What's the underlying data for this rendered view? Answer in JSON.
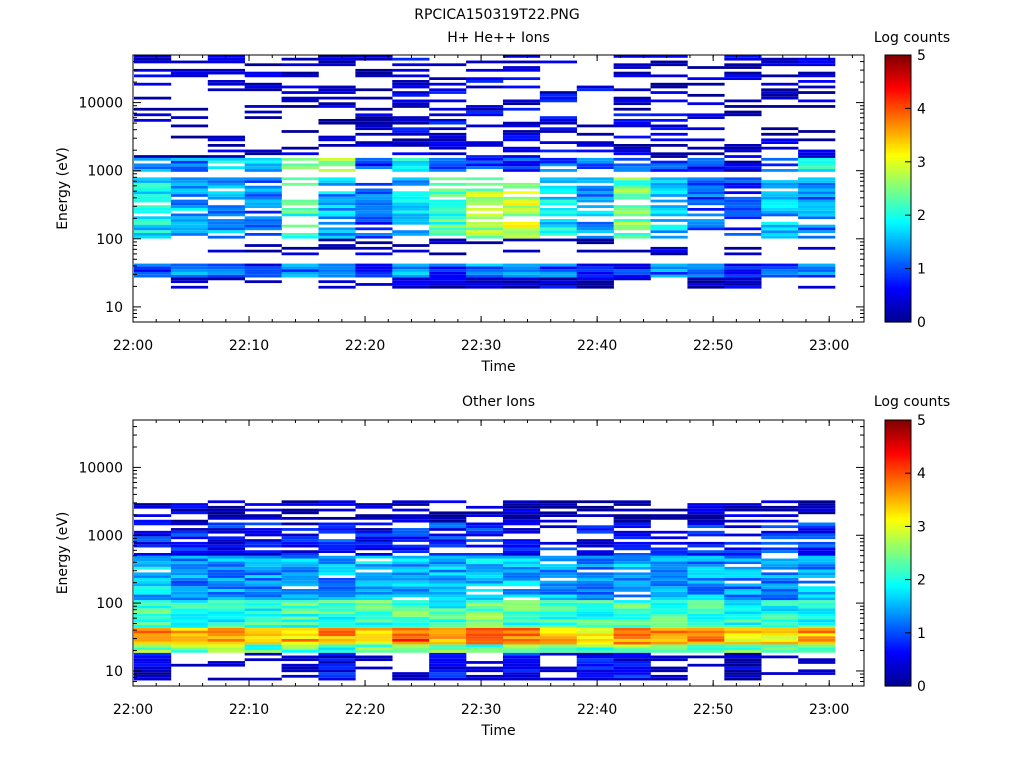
{
  "figure_title": "RPCICA150319T22.PNG",
  "colors": {
    "cmap": [
      "#00008f",
      "#0000ff",
      "#007fff",
      "#00ffff",
      "#7fff7f",
      "#ffff00",
      "#ff7f00",
      "#ff0000",
      "#7f0000"
    ]
  },
  "chart_data": [
    {
      "type": "heatmap",
      "title": "H+ He++ Ions",
      "xlabel": "Time",
      "ylabel": "Energy (eV)",
      "colorbar_label": "Log counts",
      "colorbar_ticks": [
        "0",
        "1",
        "2",
        "3",
        "4",
        "5"
      ],
      "clim": [
        0,
        5
      ],
      "xlim": [
        "22:00",
        "23:03"
      ],
      "ylim": [
        6,
        50000
      ],
      "yscale": "log",
      "x_ticks": [
        "22:00",
        "22:10",
        "22:20",
        "22:30",
        "22:40",
        "22:50",
        "23:00"
      ],
      "y_ticks": [
        "10",
        "100",
        "1000",
        "10000"
      ],
      "n_time_bins": 19,
      "n_energy_bins": 96,
      "energy_range": [
        6,
        50000
      ],
      "bands": [
        {
          "c": 0,
          "lo": 28,
          "hi": 45,
          "v": [
            0.9,
            1.2,
            1.1,
            0.6,
            1.2,
            1.2,
            0.7,
            1.3,
            1.0,
            1.3,
            1.2,
            1.0,
            0.8,
            0.7,
            1.2,
            1.0,
            0.5,
            0.9,
            1.1
          ],
          "d": 1.0
        },
        {
          "c": 0,
          "lo": 18,
          "hi": 28,
          "v": [
            0,
            0,
            0,
            0,
            0,
            0,
            0,
            0.2,
            0.2,
            0.2,
            0.3,
            0.4,
            0.2,
            0,
            0,
            0.3,
            0.3,
            0,
            0
          ],
          "d": 1.0
        },
        {
          "c": 1,
          "lo": 100,
          "hi": 800,
          "v": [
            1.8,
            1.5,
            1.4,
            1.2,
            2.2,
            1.5,
            1.0,
            1.6,
            2.2,
            2.7,
            2.8,
            1.8,
            1.4,
            2.4,
            1.6,
            1.0,
            0.9,
            1.5,
            1.3
          ],
          "d": 0.75
        },
        {
          "c": 1,
          "lo": 1000,
          "hi": 1500,
          "v": [
            1.4,
            1.2,
            1.7,
            1.5,
            2.3,
            2.6,
            1.0,
            1.8,
            1.2,
            1.0,
            0.9,
            1.0,
            1.2,
            1.3,
            1.0,
            0.8,
            0.3,
            1.1,
            1.9
          ],
          "d": 0.8
        },
        {
          "c": 0,
          "lo": 1500,
          "hi": 50000,
          "v": [
            0.3,
            0.2,
            0.2,
            0.2,
            0.2,
            0.2,
            0.3,
            0.4,
            0.5,
            0.5,
            0.5,
            0.5,
            0.4,
            0.4,
            0.3,
            0.3,
            0.3,
            0.2,
            0.2
          ],
          "d": 0.35
        },
        {
          "c": 0,
          "lo": 60,
          "hi": 100,
          "v": [
            0.2,
            0,
            0,
            0.1,
            0.1,
            0.1,
            0.2,
            0.3,
            0.2,
            0.3,
            0.2,
            0.3,
            0.2,
            0.2,
            0.2,
            0.2,
            0.1,
            0,
            0
          ],
          "d": 0.35
        }
      ]
    },
    {
      "type": "heatmap",
      "title": "Other Ions",
      "xlabel": "Time",
      "ylabel": "Energy (eV)",
      "colorbar_label": "Log counts",
      "colorbar_ticks": [
        "0",
        "1",
        "2",
        "3",
        "4",
        "5"
      ],
      "clim": [
        0,
        5
      ],
      "xlim": [
        "22:00",
        "23:03"
      ],
      "ylim": [
        6,
        50000
      ],
      "yscale": "log",
      "x_ticks": [
        "22:00",
        "22:10",
        "22:20",
        "22:30",
        "22:40",
        "22:50",
        "23:00"
      ],
      "y_ticks": [
        "10",
        "100",
        "1000",
        "10000"
      ],
      "n_time_bins": 19,
      "n_energy_bins": 96,
      "energy_range": [
        6,
        50000
      ],
      "bands": [
        {
          "c": 1,
          "lo": 25,
          "hi": 45,
          "v": [
            3.6,
            3.5,
            3.4,
            3.5,
            3.5,
            3.6,
            3.2,
            3.9,
            3.6,
            3.7,
            3.7,
            3.4,
            3.3,
            3.6,
            3.7,
            3.6,
            3.2,
            3.3,
            3.5
          ],
          "d": 1.0
        },
        {
          "c": 1,
          "lo": 45,
          "hi": 110,
          "v": [
            2.2,
            2.0,
            2.0,
            2.1,
            2.2,
            2.1,
            2.2,
            2.3,
            2.1,
            2.3,
            2.2,
            2.1,
            2.1,
            2.2,
            2.1,
            2.2,
            2.0,
            2.0,
            2.1
          ],
          "d": 1.0
        },
        {
          "c": 1,
          "lo": 110,
          "hi": 500,
          "v": [
            1.6,
            1.3,
            1.4,
            1.4,
            1.5,
            1.4,
            1.6,
            1.5,
            1.5,
            1.6,
            1.5,
            1.4,
            1.3,
            1.5,
            1.5,
            1.4,
            1.3,
            1.4,
            1.4
          ],
          "d": 0.95
        },
        {
          "c": 0,
          "lo": 500,
          "hi": 1500,
          "v": [
            0.8,
            0.7,
            0.7,
            0.6,
            0.6,
            0.8,
            0.6,
            0.7,
            0.8,
            0.9,
            0.7,
            0.7,
            0.6,
            0.6,
            0.7,
            0.8,
            0.6,
            0.9,
            0.8
          ],
          "d": 0.75
        },
        {
          "c": 0,
          "lo": 1500,
          "hi": 3200,
          "v": [
            0.3,
            0.3,
            0.2,
            0.2,
            0.2,
            0.3,
            0.2,
            0.2,
            0.2,
            0.2,
            0.2,
            0.2,
            0.2,
            0.2,
            0.2,
            0.2,
            0.2,
            0.3,
            0.3
          ],
          "d": 0.6
        },
        {
          "c": 1,
          "lo": 18,
          "hi": 25,
          "v": [
            2.4,
            2.5,
            2.6,
            2.3,
            2.3,
            1.8,
            2.4,
            2.5,
            2.6,
            2.3,
            2.6,
            2.5,
            2.3,
            2.5,
            2.2,
            2.3,
            2.4,
            2.1,
            2.2
          ],
          "d": 1.0
        },
        {
          "c": 0,
          "lo": 7,
          "hi": 18,
          "v": [
            0.4,
            0,
            0,
            0,
            0,
            0.5,
            0,
            0,
            0.6,
            0,
            0.7,
            0,
            0.6,
            0.6,
            0,
            0,
            0.3,
            0,
            0
          ],
          "d": 1.0
        }
      ]
    }
  ]
}
